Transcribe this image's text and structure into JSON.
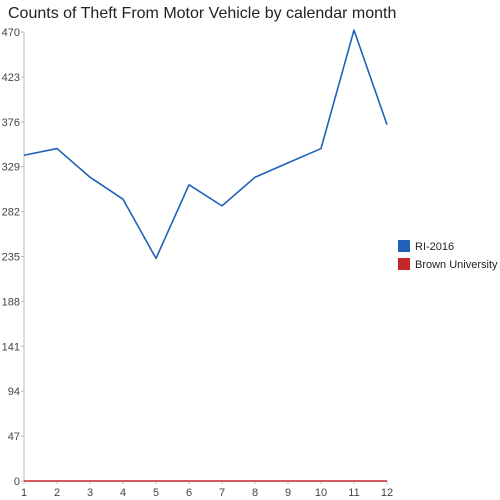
{
  "chart_data": {
    "type": "line",
    "title": "Counts of Theft From Motor Vehicle by calendar month",
    "xlabel": "",
    "ylabel": "",
    "x": [
      1,
      2,
      3,
      4,
      5,
      6,
      7,
      8,
      9,
      10,
      11,
      12
    ],
    "x_tick_labels": [
      "1",
      "2",
      "3",
      "4",
      "5",
      "6",
      "7",
      "8",
      "9",
      "10",
      "11",
      "12"
    ],
    "y_tick_labels": [
      "0",
      "47",
      "94",
      "141",
      "188",
      "235",
      "282",
      "329",
      "376",
      "423",
      "470"
    ],
    "y_ticks": [
      0,
      47,
      94,
      141,
      188,
      235,
      282,
      329,
      376,
      423,
      470
    ],
    "ylim": [
      0,
      470
    ],
    "xlim": [
      1,
      12
    ],
    "grid": false,
    "legend_position": "right",
    "series": [
      {
        "name": "RI-2016",
        "color": "#1f62b8",
        "values": [
          341,
          348,
          318,
          295,
          233,
          310,
          288,
          318,
          333,
          348,
          472,
          373
        ]
      },
      {
        "name": "Brown University",
        "color": "#c62828",
        "values": [
          0,
          0,
          0,
          0,
          0,
          0,
          0,
          0,
          0,
          0,
          0,
          0
        ]
      }
    ]
  }
}
